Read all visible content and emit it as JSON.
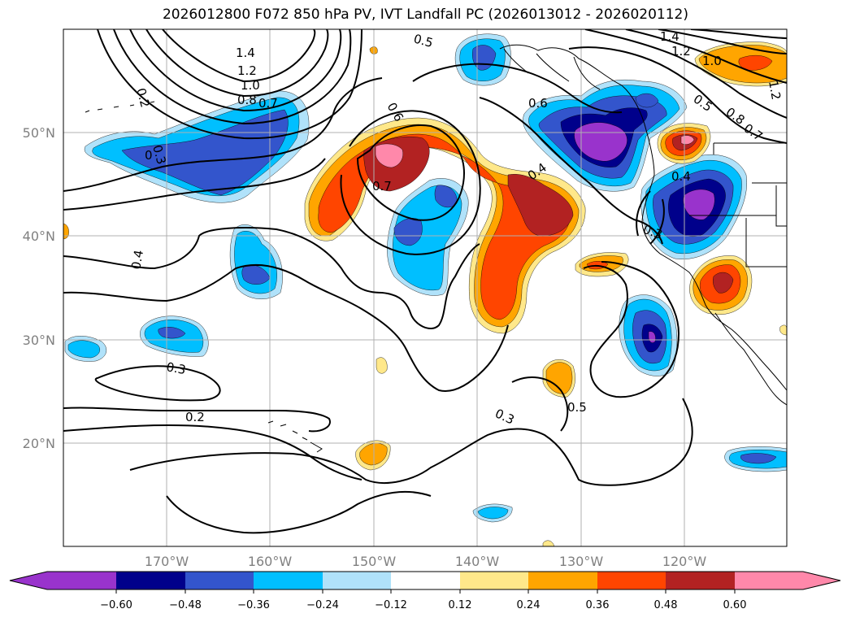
{
  "title": "2026012800 F072 850 hPa PV, IVT Landfall PC (2026013012 - 2026020112)",
  "colors": {
    "c_m_under": "#9933cc",
    "c_m060": "#00008b",
    "c_m048": "#3355cc",
    "c_m036": "#00bfff",
    "c_m024": "#b0e2fa",
    "c_zero": "#ffffff",
    "c_p012": "#ffe88a",
    "c_p024": "#ffa500",
    "c_p036": "#ff4500",
    "c_p048": "#b22222",
    "c_p060": "#ff88aa"
  },
  "map": {
    "lat_ticks": [
      "50°N",
      "40°N",
      "30°N",
      "20°N"
    ],
    "lon_ticks": [
      "170°W",
      "160°W",
      "150°W",
      "140°W",
      "130°W",
      "120°W"
    ]
  },
  "contour_labels": [
    "1.4",
    "1.2",
    "1.0",
    "0.8",
    "0.7",
    "0.2",
    "0.3",
    "0",
    "0.5",
    "0.6",
    "1.4",
    "1.2",
    "1.0",
    "0.5",
    "0.8",
    "0.7",
    "1.2",
    "0.6",
    "0.7",
    "0.4",
    "0.4",
    "0.3",
    "0.4",
    "0.3",
    "0.2",
    "0.3",
    "0.5"
  ],
  "colorbar": {
    "ticks": [
      "−0.60",
      "−0.48",
      "−0.36",
      "−0.24",
      "−0.12",
      "0.12",
      "0.24",
      "0.36",
      "0.48",
      "0.60"
    ]
  }
}
